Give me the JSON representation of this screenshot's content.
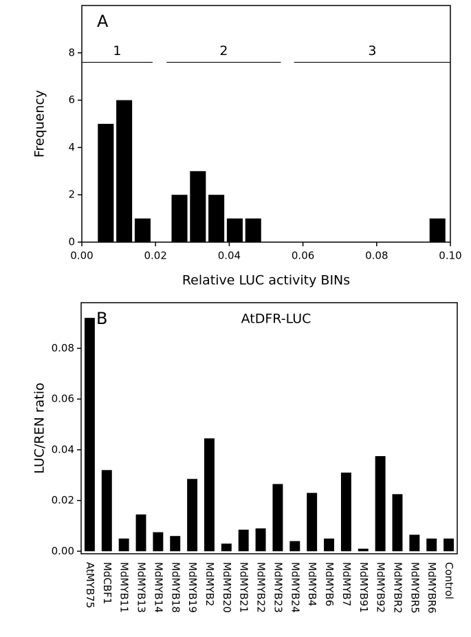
{
  "chart_data": [
    {
      "type": "histogram",
      "annotation": "A",
      "xlabel": "Relative LUC activity BINs",
      "ylabel": "Frequency",
      "bins": [
        0.004,
        0.009,
        0.014,
        0.019,
        0.024,
        0.029,
        0.034,
        0.039,
        0.044,
        0.049,
        0.054,
        0.059,
        0.064,
        0.069,
        0.074,
        0.079,
        0.084,
        0.089,
        0.094,
        0.099
      ],
      "counts": [
        5,
        6,
        1,
        0,
        2,
        3,
        2,
        1,
        1,
        0,
        0,
        0,
        0,
        0,
        0,
        0,
        0,
        0,
        1
      ],
      "color": "#000000",
      "xlim": [
        0,
        0.1
      ],
      "xticks": [
        {
          "value": 0,
          "label": "0.00"
        },
        {
          "value": 0.02,
          "label": "0.02"
        },
        {
          "value": 0.04,
          "label": "0.04"
        },
        {
          "value": 0.06,
          "label": "0.06"
        },
        {
          "value": 0.08,
          "label": "0.08"
        },
        {
          "value": 0.1,
          "label": "0.10"
        }
      ],
      "ylim": [
        0,
        10
      ],
      "yticks": [
        0,
        2,
        4,
        6,
        8
      ],
      "groups": [
        {
          "label": "1",
          "range": [
            0,
            0.0192
          ],
          "y": 7.6
        },
        {
          "label": "2",
          "range": [
            0.023,
            0.054
          ],
          "y": 7.6
        },
        {
          "label": "3",
          "range": [
            0.0576,
            0.1
          ],
          "y": 7.6
        }
      ]
    },
    {
      "type": "bar",
      "annotation": "B",
      "title": "AtDFR-LUC",
      "ylabel": "LUC/REN ratio",
      "categories": [
        "AtMYB75",
        "MdCBF1",
        "MdMYB11",
        "MdMYB13",
        "MdMYB14",
        "MdMYB18",
        "MdMYB19",
        "MdMYB2",
        "MdMYB20",
        "MdMYB21",
        "MdMYB22",
        "MdMYB23",
        "MdMYB24",
        "MdMYB4",
        "MdMYB6",
        "MdMYB7",
        "MdMYB91",
        "MdMYB92",
        "MdMYBR2",
        "MdMYBR5",
        "MdMYBR6",
        "Control"
      ],
      "values": [
        0.092,
        0.032,
        0.005,
        0.0145,
        0.0075,
        0.006,
        0.0285,
        0.0445,
        0.003,
        0.0085,
        0.009,
        0.0265,
        0.004,
        0.023,
        0.005,
        0.031,
        0.001,
        0.0375,
        0.0225,
        0.0065,
        0.005,
        0.005
      ],
      "color": "#000000",
      "ylim": [
        -0.001,
        0.098
      ],
      "yticks": [
        {
          "value": 0,
          "label": "0.00"
        },
        {
          "value": 0.02,
          "label": "0.02"
        },
        {
          "value": 0.04,
          "label": "0.04"
        },
        {
          "value": 0.06,
          "label": "0.06"
        },
        {
          "value": 0.08,
          "label": "0.08"
        }
      ]
    }
  ]
}
